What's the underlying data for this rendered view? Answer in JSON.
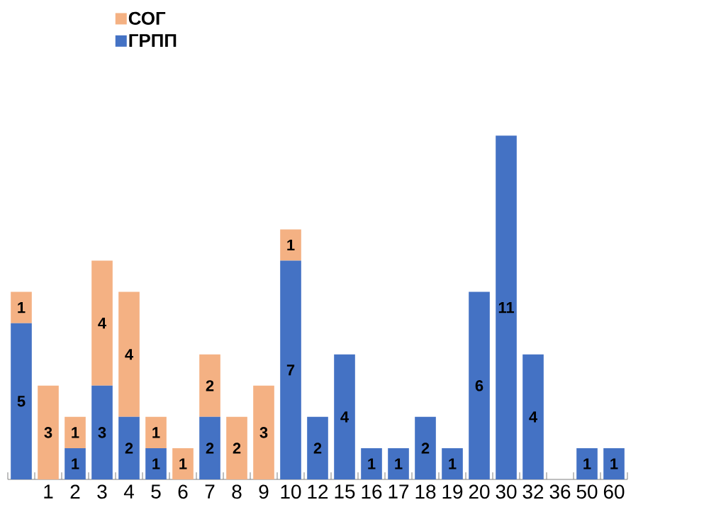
{
  "chart_data": {
    "type": "bar",
    "stacked": true,
    "legend": "top left",
    "data_labels": false,
    "categories": [
      null,
      "1",
      "2",
      "3",
      "4",
      "5",
      "6",
      "7",
      "8",
      "9",
      "10",
      "12",
      "15",
      "16",
      "17",
      "18",
      "19",
      "20",
      "30",
      "32",
      "36",
      "50",
      "60"
    ],
    "series": [
      {
        "name": "ГРПП",
        "color": "#4472c4",
        "values": [
          5,
          0,
          1,
          3,
          2,
          1,
          0,
          2,
          0,
          0,
          7,
          2,
          4,
          1,
          1,
          2,
          1,
          6,
          11,
          4,
          0,
          1,
          1
        ],
        "value_labels": [
          "5",
          null,
          "1",
          "3",
          "2",
          "1",
          null,
          "2",
          null,
          null,
          "7",
          "2",
          "4",
          "1",
          "1",
          "2",
          "1",
          "6",
          "11",
          "4",
          null,
          "1",
          "1"
        ]
      },
      {
        "name": "СОГ",
        "color": "#f4b183",
        "values": [
          1,
          3,
          1,
          4,
          4,
          1,
          1,
          2,
          2,
          3,
          1,
          0,
          0,
          0,
          0,
          0,
          0,
          0,
          0,
          0,
          0,
          0,
          0
        ],
        "value_labels": [
          "1",
          "3",
          "1",
          "4",
          "4",
          "1",
          "1",
          "2",
          "2",
          "3",
          "1",
          null,
          null,
          null,
          null,
          null,
          null,
          null,
          null,
          null,
          null,
          null,
          null
        ]
      }
    ]
  }
}
